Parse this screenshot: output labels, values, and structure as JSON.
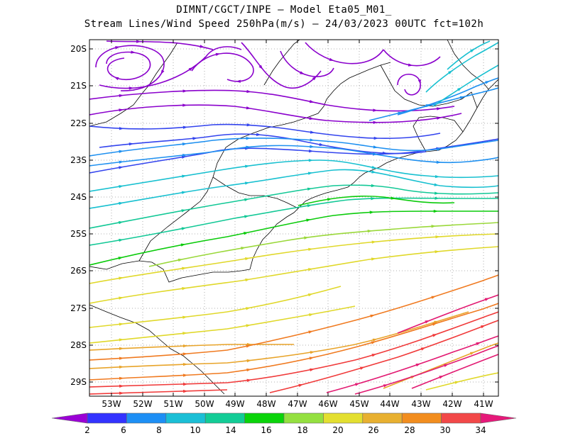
{
  "header": {
    "title_line1": "DIMNT/CGCT/INPE  –  Model Eta05_M01_",
    "title_line2": "Stream Lines/Wind Speed 250hPa(m/s)  –  24/03/2023 00UTC fct=102h"
  },
  "map": {
    "lat_labels": [
      "20S",
      "21S",
      "22S",
      "23S",
      "24S",
      "25S",
      "26S",
      "27S",
      "28S",
      "29S"
    ],
    "lon_labels": [
      "53W",
      "52W",
      "51W",
      "50W",
      "49W",
      "48W",
      "47W",
      "46W",
      "45W",
      "44W",
      "43W",
      "42W",
      "41W"
    ]
  },
  "colorbar": {
    "colors": [
      "#9b00d6",
      "#3333ff",
      "#1d8ff5",
      "#1bbfd6",
      "#12cc96",
      "#0ad40a",
      "#94e040",
      "#e3df30",
      "#e8b030",
      "#f28d1e",
      "#f24848",
      "#e6197a"
    ],
    "labels": [
      "2",
      "6",
      "8",
      "10",
      "14",
      "16",
      "18",
      "20",
      "26",
      "28",
      "30",
      "34"
    ]
  },
  "streamline_colors": {
    "weak": "#8a00cc",
    "light": "#3344ee",
    "moderate": "#1e90f0",
    "fresh": "#18c0d0",
    "strong": "#12c896",
    "jet_low": "#0acb0a",
    "jet_mid": "#9ad83a",
    "jet": "#e0d82a",
    "jet_high": "#e8a42a",
    "core": "#f07a20",
    "core_high": "#f03a3a",
    "max": "#e21a72"
  }
}
